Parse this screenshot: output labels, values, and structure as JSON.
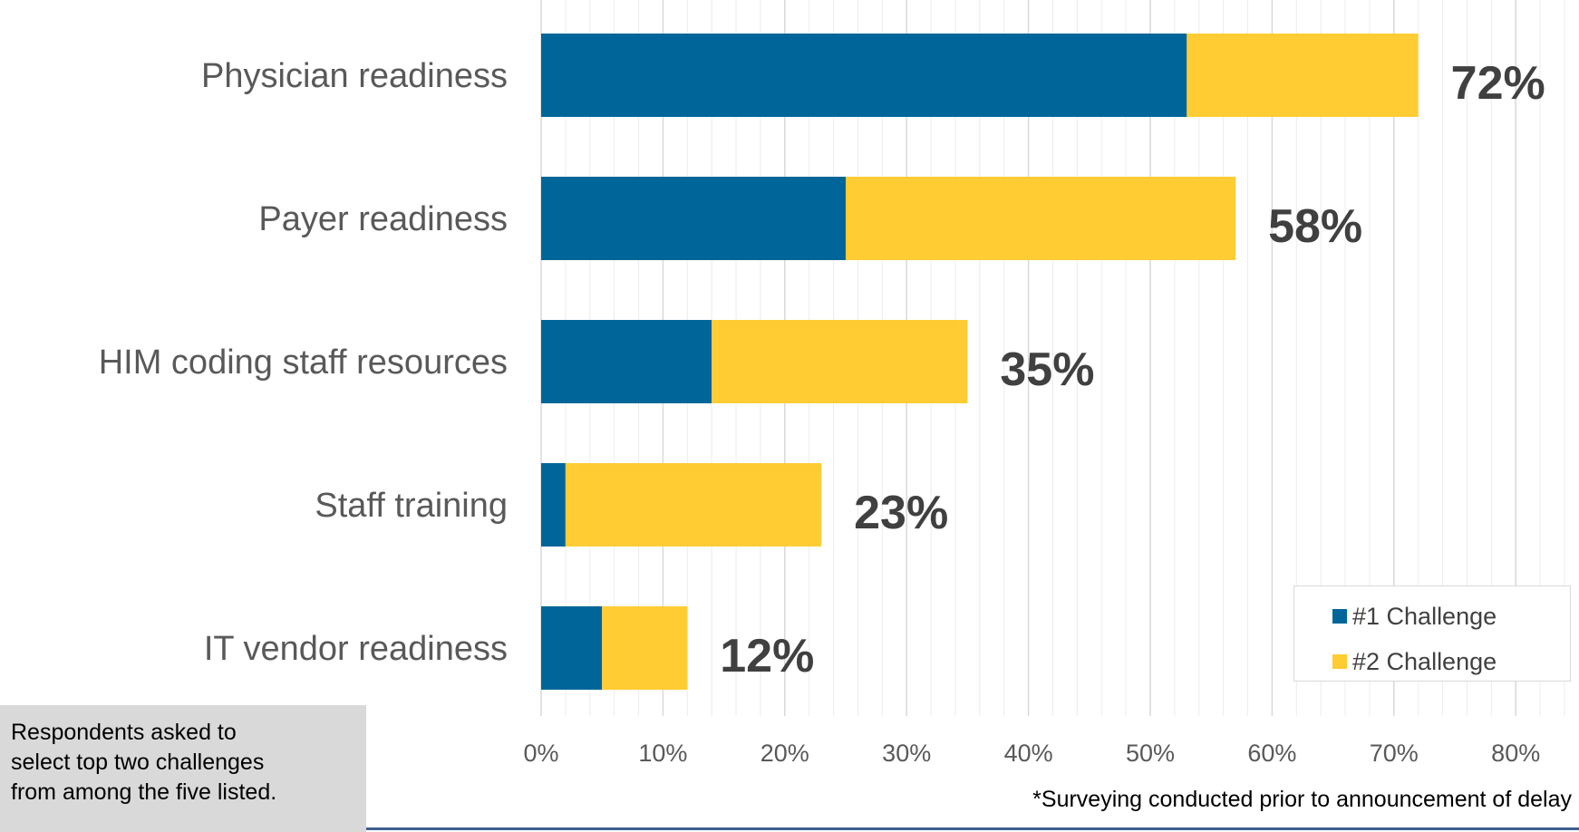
{
  "chart_data": {
    "type": "bar",
    "orientation": "horizontal",
    "stacked": true,
    "categories": [
      "Physician readiness",
      "Payer readiness",
      "HIM coding staff resources",
      "Staff training",
      "IT vendor readiness"
    ],
    "series": [
      {
        "name": "#1 Challenge",
        "color": "#006699",
        "values": [
          53,
          25,
          14,
          2,
          5
        ]
      },
      {
        "name": "#2 Challenge",
        "color": "#ffcc33",
        "values": [
          19,
          32,
          21,
          21,
          7
        ]
      }
    ],
    "data_labels": [
      "72%",
      "58%",
      "35%",
      "23%",
      "12%"
    ],
    "x_ticks": [
      "0%",
      "10%",
      "20%",
      "30%",
      "40%",
      "50%",
      "60%",
      "70%",
      "80%"
    ],
    "xlim": [
      0,
      85
    ],
    "grid": true,
    "legend_position": "bottom-right"
  },
  "note": {
    "lines": [
      "Respondents asked to",
      "select top two challenges",
      "from among the five listed."
    ]
  },
  "footnote": "*Surveying conducted prior to announcement of delay"
}
